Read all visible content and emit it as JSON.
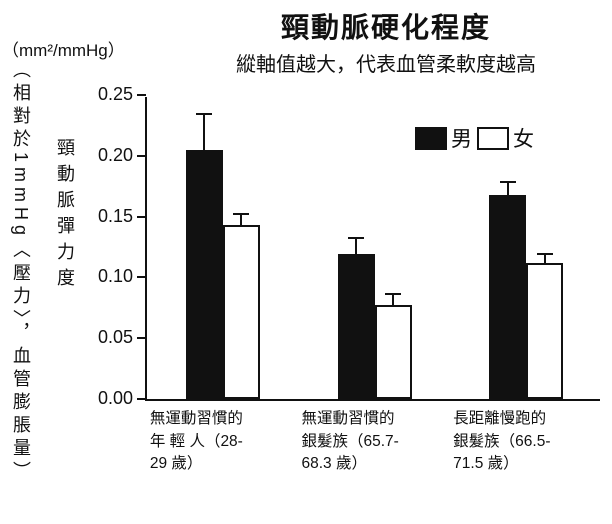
{
  "header": {
    "title": "頸動脈硬化程度",
    "subtitle": "縱軸值越大，代表血管柔軟度越高"
  },
  "y_axis": {
    "unit": "（mm²/mmHg）",
    "outer_label": "（相對於1mmHg〈壓力〉，血管膨脹量）",
    "inner_label": "頸動脈彈力度"
  },
  "chart_data": {
    "type": "bar",
    "title": "頸動脈硬化程度",
    "subtitle": "縱軸值越大，代表血管柔軟度越高",
    "xlabel": "",
    "ylabel": "頸動脈彈力度（mm²/mmHg）",
    "categories": [
      "無運動習慣的年輕人（28-29 歲）",
      "無運動習慣的銀髮族（65.7-68.3 歲）",
      "長距離慢跑的銀髮族（66.5-71.5 歲）"
    ],
    "category_lines": [
      [
        "無運動習慣的",
        "年 輕 人（28-",
        "29 歲）"
      ],
      [
        "無運動習慣的",
        "銀髮族（65.7-",
        "68.3 歲）"
      ],
      [
        "長距離慢跑的",
        "銀髮族（66.5-",
        "71.5 歲）"
      ]
    ],
    "series": [
      {
        "name": "男",
        "fill": "#111111",
        "values": [
          0.205,
          0.119,
          0.168
        ],
        "errors": [
          0.03,
          0.014,
          0.011
        ]
      },
      {
        "name": "女",
        "fill": "#ffffff",
        "values": [
          0.143,
          0.077,
          0.112
        ],
        "errors": [
          0.01,
          0.01,
          0.008
        ]
      }
    ],
    "ylim": [
      0,
      0.25
    ],
    "yticks": [
      0,
      0.05,
      0.1,
      0.15,
      0.2,
      0.25
    ],
    "ytick_labels": [
      "0.00",
      "0.05",
      "0.10",
      "0.15",
      "0.20",
      "0.25"
    ],
    "grid": false,
    "legend_position": "top-right"
  }
}
